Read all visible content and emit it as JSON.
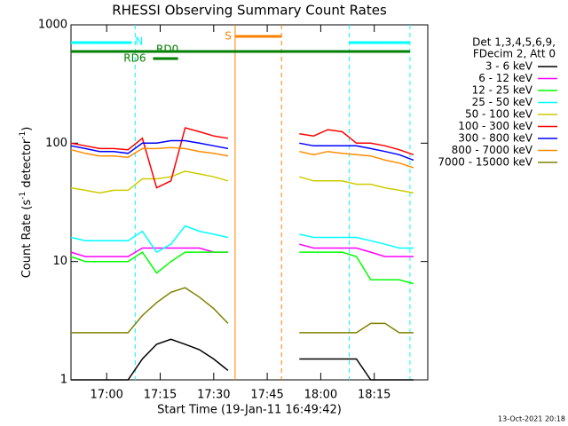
{
  "chart_data": {
    "type": "line",
    "title": "RHESSI Observing Summary Count Rates",
    "xlabel": "Start Time (19-Jan-11 16:49:42)",
    "ylabel": [
      "Count Rate (s",
      "-1",
      " detector",
      "-1",
      ")"
    ],
    "legend_header": [
      "Det 1,3,4,5,6,9,",
      "FDecim 2, Att 0"
    ],
    "timestamp": "13-Oct-2021 20:18",
    "log_y": true,
    "xlim": [
      "16:50",
      "18:30"
    ],
    "xticks": [
      "17:00",
      "17:15",
      "17:30",
      "17:45",
      "18:00",
      "18:15"
    ],
    "ylim": [
      1,
      1000
    ],
    "yticks": [
      1,
      10,
      100,
      1000
    ],
    "x": [
      "16:50",
      "16:54",
      "16:58",
      "17:02",
      "17:06",
      "17:10",
      "17:14",
      "17:18",
      "17:22",
      "17:26",
      "17:30",
      "17:34",
      "17:38",
      "17:42",
      "17:46",
      "17:50",
      "17:54",
      "17:58",
      "18:02",
      "18:06",
      "18:10",
      "18:14",
      "18:18",
      "18:22",
      "18:26"
    ],
    "series": [
      {
        "name": "3 - 6 keV",
        "color": "#000000",
        "values": [
          1,
          1,
          1,
          1,
          1,
          1.5,
          2,
          2.2,
          2,
          1.8,
          1.5,
          1.2,
          null,
          null,
          null,
          null,
          1.5,
          1.5,
          1.5,
          1.5,
          1.5,
          1,
          1,
          1,
          1
        ]
      },
      {
        "name": "6 - 12 keV",
        "color": "#ff00ff",
        "values": [
          12,
          11,
          11,
          11,
          11,
          13,
          13,
          13,
          13,
          13,
          12,
          12,
          null,
          null,
          null,
          null,
          14,
          13,
          13,
          13,
          13,
          12,
          11,
          11,
          11
        ]
      },
      {
        "name": "12 - 25 keV",
        "color": "#00ff00",
        "values": [
          11,
          10,
          10,
          10,
          10,
          12,
          8,
          10,
          12,
          12,
          12,
          12,
          null,
          null,
          null,
          null,
          12,
          12,
          12,
          12,
          11,
          7,
          7,
          7,
          6.5
        ]
      },
      {
        "name": "25 - 50 keV",
        "color": "#00ffff",
        "values": [
          16,
          15,
          15,
          15,
          15,
          18,
          12,
          14,
          20,
          18,
          17,
          16,
          null,
          null,
          null,
          null,
          17,
          16,
          16,
          16,
          16,
          15,
          14,
          13,
          13
        ]
      },
      {
        "name": "50 - 100 keV",
        "color": "#cccc00",
        "values": [
          42,
          40,
          38,
          40,
          40,
          50,
          50,
          52,
          58,
          55,
          52,
          48,
          null,
          null,
          null,
          null,
          52,
          48,
          48,
          48,
          45,
          45,
          42,
          40,
          38
        ]
      },
      {
        "name": "100 - 300 keV",
        "color": "#ff0000",
        "values": [
          100,
          95,
          90,
          90,
          88,
          110,
          42,
          48,
          135,
          125,
          115,
          110,
          null,
          null,
          null,
          null,
          120,
          115,
          130,
          125,
          100,
          100,
          95,
          88,
          80
        ]
      },
      {
        "name": "300 - 800 keV",
        "color": "#0000ff",
        "values": [
          95,
          90,
          85,
          85,
          82,
          100,
          100,
          105,
          105,
          100,
          95,
          90,
          null,
          null,
          null,
          null,
          100,
          95,
          95,
          95,
          95,
          90,
          85,
          80,
          72
        ]
      },
      {
        "name": "800 - 7000 keV",
        "color": "#ff8c00",
        "values": [
          88,
          82,
          78,
          78,
          76,
          90,
          90,
          92,
          90,
          85,
          82,
          78,
          null,
          null,
          null,
          null,
          85,
          80,
          85,
          82,
          80,
          78,
          72,
          68,
          62
        ]
      },
      {
        "name": "7000 - 15000 keV",
        "color": "#808000",
        "values": [
          2.5,
          2.5,
          2.5,
          2.5,
          2.5,
          3.5,
          4.5,
          5.5,
          6,
          5,
          4,
          3,
          null,
          null,
          null,
          null,
          2.5,
          2.5,
          2.5,
          2.5,
          2.5,
          3,
          3,
          2.5,
          2.5
        ]
      }
    ],
    "flags": [
      {
        "label": "N",
        "color": "#00ffff",
        "spans": [
          [
            "16:50",
            "17:07"
          ],
          [
            "18:08",
            "18:25"
          ]
        ]
      },
      {
        "label": "S",
        "color": "#ff8000",
        "spans": [
          [
            "17:36",
            "17:49"
          ]
        ]
      },
      {
        "label": "RD0",
        "color": "#008000",
        "spans": [
          [
            "16:50",
            "18:25"
          ]
        ]
      },
      {
        "label": "RD6",
        "color": "#008000",
        "spans": [
          [
            "17:13",
            "17:20"
          ]
        ]
      }
    ],
    "vlines": [
      {
        "x": "17:08",
        "color": "#00ffff",
        "dash": true
      },
      {
        "x": "18:08",
        "color": "#00ffff",
        "dash": true
      },
      {
        "x": "18:25",
        "color": "#00ffff",
        "dash": true
      },
      {
        "x": "17:36",
        "color": "#ff8000",
        "dash": false
      },
      {
        "x": "17:49",
        "color": "#ff8000",
        "dash": true
      }
    ]
  }
}
